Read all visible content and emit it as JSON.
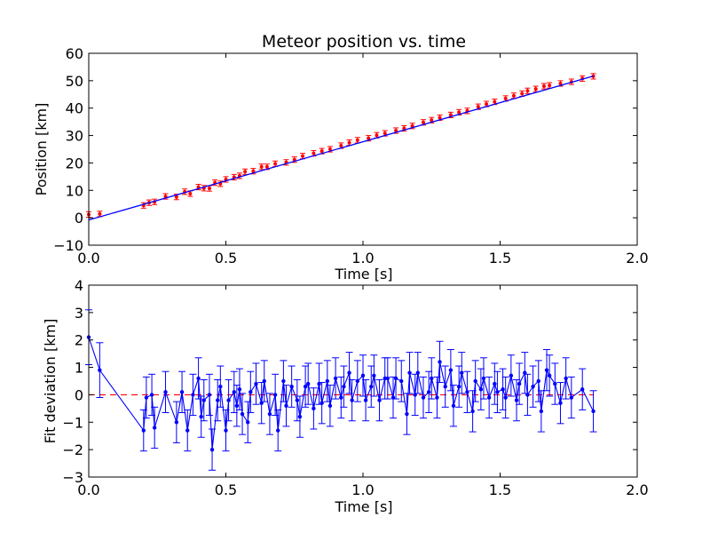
{
  "chart_data": [
    {
      "type": "scatter",
      "title": "Meteor position vs. time",
      "xlabel": "Time [s]",
      "ylabel": "Position [km]",
      "xlim": [
        0.0,
        2.0
      ],
      "ylim": [
        -10,
        60
      ],
      "xticks": [
        "0.0",
        "0.5",
        "1.0",
        "1.5",
        "2.0"
      ],
      "yticks": [
        "−10",
        "0",
        "10",
        "20",
        "30",
        "40",
        "50",
        "60"
      ],
      "grid": false,
      "series": [
        {
          "style": "markers-with-errorbars",
          "color": "#ff0000",
          "x": [
            0.0,
            0.04,
            0.2,
            0.22,
            0.24,
            0.28,
            0.32,
            0.35,
            0.37,
            0.4,
            0.42,
            0.44,
            0.46,
            0.48,
            0.5,
            0.53,
            0.55,
            0.57,
            0.6,
            0.63,
            0.65,
            0.68,
            0.72,
            0.75,
            0.78,
            0.82,
            0.85,
            0.88,
            0.92,
            0.95,
            0.98,
            1.02,
            1.05,
            1.08,
            1.12,
            1.15,
            1.18,
            1.22,
            1.25,
            1.28,
            1.32,
            1.35,
            1.38,
            1.42,
            1.45,
            1.48,
            1.52,
            1.55,
            1.58,
            1.6,
            1.63,
            1.66,
            1.68,
            1.72,
            1.76,
            1.8,
            1.84
          ],
          "y": [
            1.2,
            1.4,
            4.5,
            5.5,
            5.8,
            7.8,
            7.6,
            9.5,
            8.8,
            11.2,
            10.8,
            10.7,
            12.8,
            12.4,
            14.0,
            14.8,
            15.3,
            16.8,
            17.0,
            18.6,
            18.6,
            19.7,
            20.2,
            21.2,
            22.5,
            23.5,
            24.3,
            25.0,
            26.3,
            27.4,
            28.3,
            29.0,
            30.1,
            30.8,
            31.8,
            32.6,
            33.5,
            34.8,
            35.6,
            36.5,
            37.5,
            38.5,
            39.0,
            40.5,
            41.5,
            42.3,
            43.5,
            44.5,
            45.3,
            46.3,
            47.0,
            48.0,
            48.3,
            49.0,
            49.6,
            50.8,
            51.6
          ]
        },
        {
          "style": "line",
          "color": "#0000ff",
          "x": [
            0.0,
            1.84
          ],
          "y": [
            -0.8,
            51.7
          ]
        }
      ]
    },
    {
      "type": "line",
      "title": "",
      "xlabel": "Time [s]",
      "ylabel": "Fit deviation [km]",
      "xlim": [
        0.0,
        2.0
      ],
      "ylim": [
        -3,
        4
      ],
      "xticks": [
        "0.0",
        "0.5",
        "1.0",
        "1.5",
        "2.0"
      ],
      "yticks": [
        "−3",
        "−2",
        "−1",
        "0",
        "1",
        "2",
        "3",
        "4"
      ],
      "grid": false,
      "reference_line": {
        "y": 0,
        "color": "#ff0000",
        "style": "dashed",
        "x_end": 1.84
      },
      "series": [
        {
          "style": "line-markers-errorbars",
          "color": "#0000ff",
          "x": [
            0.0,
            0.04,
            0.2,
            0.21,
            0.23,
            0.24,
            0.28,
            0.32,
            0.34,
            0.36,
            0.38,
            0.4,
            0.41,
            0.42,
            0.44,
            0.45,
            0.47,
            0.48,
            0.5,
            0.51,
            0.53,
            0.54,
            0.55,
            0.56,
            0.58,
            0.59,
            0.61,
            0.63,
            0.64,
            0.66,
            0.68,
            0.69,
            0.71,
            0.72,
            0.74,
            0.76,
            0.77,
            0.79,
            0.8,
            0.82,
            0.84,
            0.85,
            0.87,
            0.88,
            0.9,
            0.92,
            0.93,
            0.95,
            0.96,
            0.98,
            1.0,
            1.01,
            1.03,
            1.04,
            1.06,
            1.08,
            1.09,
            1.11,
            1.12,
            1.14,
            1.16,
            1.17,
            1.19,
            1.2,
            1.22,
            1.24,
            1.25,
            1.27,
            1.28,
            1.3,
            1.32,
            1.33,
            1.35,
            1.36,
            1.38,
            1.4,
            1.41,
            1.43,
            1.44,
            1.46,
            1.48,
            1.49,
            1.51,
            1.52,
            1.54,
            1.56,
            1.57,
            1.59,
            1.6,
            1.62,
            1.64,
            1.65,
            1.67,
            1.68,
            1.7,
            1.72,
            1.74,
            1.76,
            1.8,
            1.84
          ],
          "y": [
            2.1,
            0.9,
            -1.3,
            -0.1,
            0.0,
            -1.2,
            0.1,
            -1.0,
            0.1,
            -1.3,
            0.0,
            0.6,
            -0.8,
            -0.2,
            0.0,
            -2.0,
            -0.2,
            0.3,
            -1.3,
            -0.2,
            0.1,
            -0.4,
            0.2,
            -0.7,
            -1.0,
            0.1,
            0.4,
            -0.3,
            0.5,
            -0.7,
            0.0,
            -1.3,
            0.5,
            -0.4,
            0.3,
            -0.2,
            -0.8,
            0.3,
            0.4,
            -0.5,
            0.4,
            -0.3,
            0.5,
            -0.4,
            0.6,
            -0.1,
            0.3,
            0.8,
            -0.2,
            0.5,
            0.7,
            -0.2,
            0.3,
            0.7,
            -0.2,
            0.6,
            0.6,
            -0.1,
            0.6,
            0.5,
            -0.7,
            0.8,
            0.0,
            0.8,
            -0.1,
            0.1,
            0.6,
            -0.1,
            1.2,
            0.3,
            0.9,
            -0.4,
            0.3,
            0.8,
            0.1,
            -0.6,
            0.5,
            0.2,
            0.6,
            -0.1,
            0.4,
            0.1,
            0.2,
            -0.1,
            0.7,
            -0.2,
            0.4,
            0.8,
            0.0,
            0.3,
            0.5,
            -0.6,
            0.9,
            0.7,
            0.4,
            -0.3,
            0.6,
            -0.1,
            0.2,
            -0.6
          ]
        }
      ]
    }
  ]
}
